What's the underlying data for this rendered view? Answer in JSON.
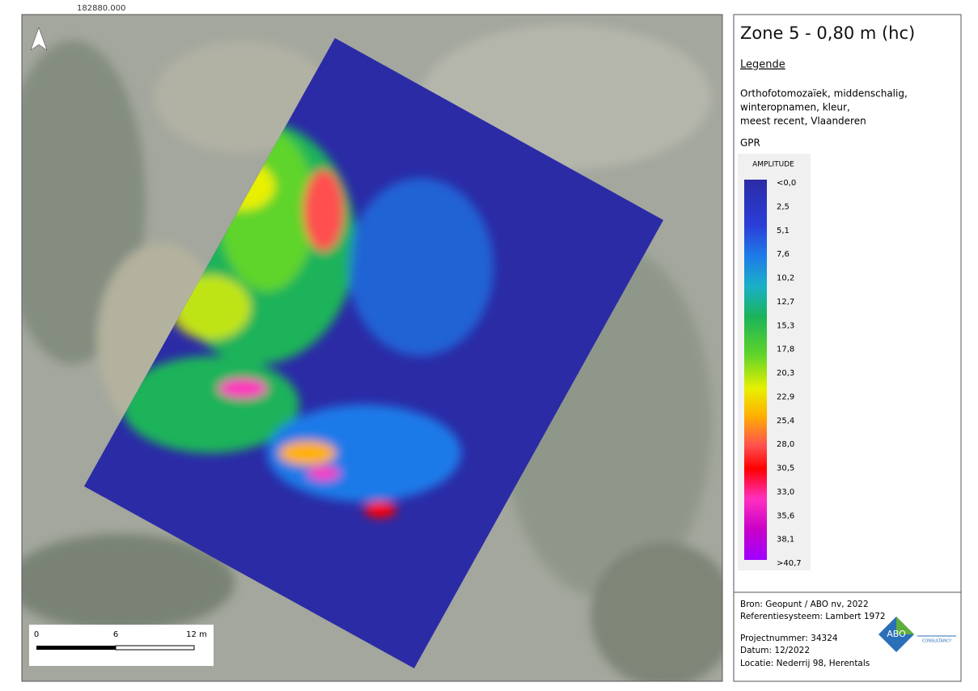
{
  "map": {
    "coordinate": "182880.000"
  },
  "scale": {
    "labels": [
      "0",
      "6",
      "12 m"
    ]
  },
  "legend": {
    "title": "Zone 5 - 0,80 m (hc)",
    "heading": "Legende",
    "layer_lines": [
      "Orthofotomozaïek, middenschalig,",
      "winteropnamen, kleur,",
      "meest recent, Vlaanderen"
    ],
    "gpr_layer": "GPR",
    "ramp_title": "AMPLITUDE",
    "labels": [
      "<0,0",
      "2,5",
      "5,1",
      "7,6",
      "10,2",
      "12,7",
      "15,3",
      "17,8",
      "20,3",
      "22,9",
      "25,4",
      "28,0",
      "30,5",
      "33,0",
      "35,6",
      "38,1",
      ">40,7"
    ]
  },
  "footer": {
    "source": "Bron: Geopunt / ABO nv, 2022",
    "reference": "Referentiesysteem: Lambert 1972",
    "project": "Projectnummer: 34324",
    "date": "Datum: 12/2022",
    "location": "Locatie: Nederrij 98, Herentals",
    "logo": "ABO",
    "logo_sub": "CONSULTANCY"
  }
}
